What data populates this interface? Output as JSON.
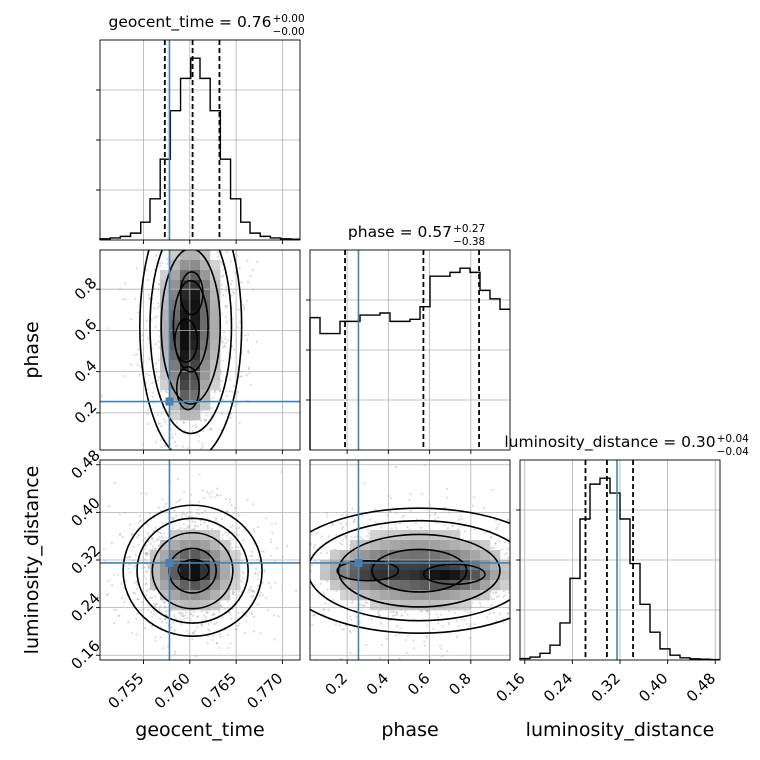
{
  "chart_data": {
    "type": "corner",
    "parameters": [
      "geocent_time",
      "phase",
      "luminosity_distance"
    ],
    "truths": {
      "geocent_time": 0.7578,
      "phase": 0.255,
      "luminosity_distance": 0.315
    },
    "colors": {
      "truth": "#4682b4",
      "hist": "#000000",
      "grid": "#b0b0b0",
      "samples": "#9a9a9a"
    },
    "grid": true,
    "ranges": {
      "geocent_time": [
        0.7503,
        0.7719
      ],
      "phase": [
        0.02,
        0.99
      ],
      "luminosity_distance": [
        0.152,
        0.488
      ]
    },
    "ticks": {
      "geocent_time": [
        "0.755",
        "0.760",
        "0.765",
        "0.770"
      ],
      "phase": [
        "0.2",
        "0.4",
        "0.6",
        "0.8"
      ],
      "luminosity_distance": [
        "0.16",
        "0.24",
        "0.32",
        "0.40",
        "0.48"
      ]
    },
    "diagonal": [
      {
        "param": "geocent_time",
        "title_main": "geocent_time = 0.76",
        "title_sup": "+0.00",
        "title_sub": "−0.00",
        "quantiles": [
          0.7573,
          0.7603,
          0.7632
        ],
        "bin_edges": [
          0.7503,
          0.7514,
          0.7525,
          0.7536,
          0.7547,
          0.7557,
          0.7568,
          0.7579,
          0.759,
          0.7601,
          0.7611,
          0.7622,
          0.7633,
          0.7644,
          0.7655,
          0.7665,
          0.7676,
          0.7687,
          0.7698,
          0.7709,
          0.7719
        ],
        "counts": [
          3,
          5,
          9,
          17,
          44,
          102,
          200,
          320,
          400,
          450,
          400,
          320,
          200,
          102,
          44,
          17,
          9,
          5,
          3,
          2
        ]
      },
      {
        "param": "phase",
        "title_main": "phase = 0.57",
        "title_sup": "+0.27",
        "title_sub": "−0.38",
        "quantiles": [
          0.19,
          0.57,
          0.84
        ],
        "bin_edges": [
          0.02,
          0.0685,
          0.117,
          0.1655,
          0.214,
          0.2625,
          0.311,
          0.3595,
          0.408,
          0.4565,
          0.505,
          0.5535,
          0.602,
          0.6505,
          0.699,
          0.7475,
          0.796,
          0.8445,
          0.893,
          0.9415,
          0.99
        ],
        "counts": [
          316,
          278,
          278,
          307,
          307,
          322,
          322,
          327,
          307,
          307,
          312,
          342,
          415,
          415,
          424,
          434,
          424,
          381,
          361,
          336
        ]
      },
      {
        "param": "luminosity_distance",
        "title_main": "luminosity_distance = 0.30",
        "title_sup": "+0.04",
        "title_sub": "−0.04",
        "quantiles": [
          0.262,
          0.298,
          0.342
        ],
        "bin_edges": [
          0.152,
          0.1688,
          0.1856,
          0.2024,
          0.2192,
          0.236,
          0.2528,
          0.2696,
          0.2864,
          0.3032,
          0.32,
          0.3368,
          0.3536,
          0.3704,
          0.3872,
          0.404,
          0.4208,
          0.4376,
          0.4544,
          0.4712,
          0.488
        ],
        "counts": [
          4,
          8,
          18,
          40,
          100,
          220,
          380,
          474,
          490,
          450,
          380,
          260,
          150,
          75,
          30,
          13,
          6,
          3,
          2,
          1
        ]
      }
    ],
    "pairs": [
      {
        "x": "geocent_time",
        "y": "phase",
        "center": [
          0.7601,
          0.62
        ],
        "spread": [
          0.0022,
          0.26
        ],
        "dense_regions": [
          [
            0.7602,
            0.78
          ],
          [
            0.7596,
            0.55
          ],
          [
            0.7598,
            0.32
          ]
        ]
      },
      {
        "x": "geocent_time",
        "y": "luminosity_distance",
        "center": [
          0.7603,
          0.302
        ],
        "spread": [
          0.003,
          0.044
        ],
        "dense_regions": [
          [
            0.7604,
            0.303
          ]
        ]
      },
      {
        "x": "phase",
        "y": "luminosity_distance",
        "center": [
          0.55,
          0.302
        ],
        "spread": [
          0.27,
          0.042
        ],
        "dense_regions": [
          [
            0.72,
            0.296
          ],
          [
            0.3,
            0.302
          ]
        ]
      }
    ]
  }
}
